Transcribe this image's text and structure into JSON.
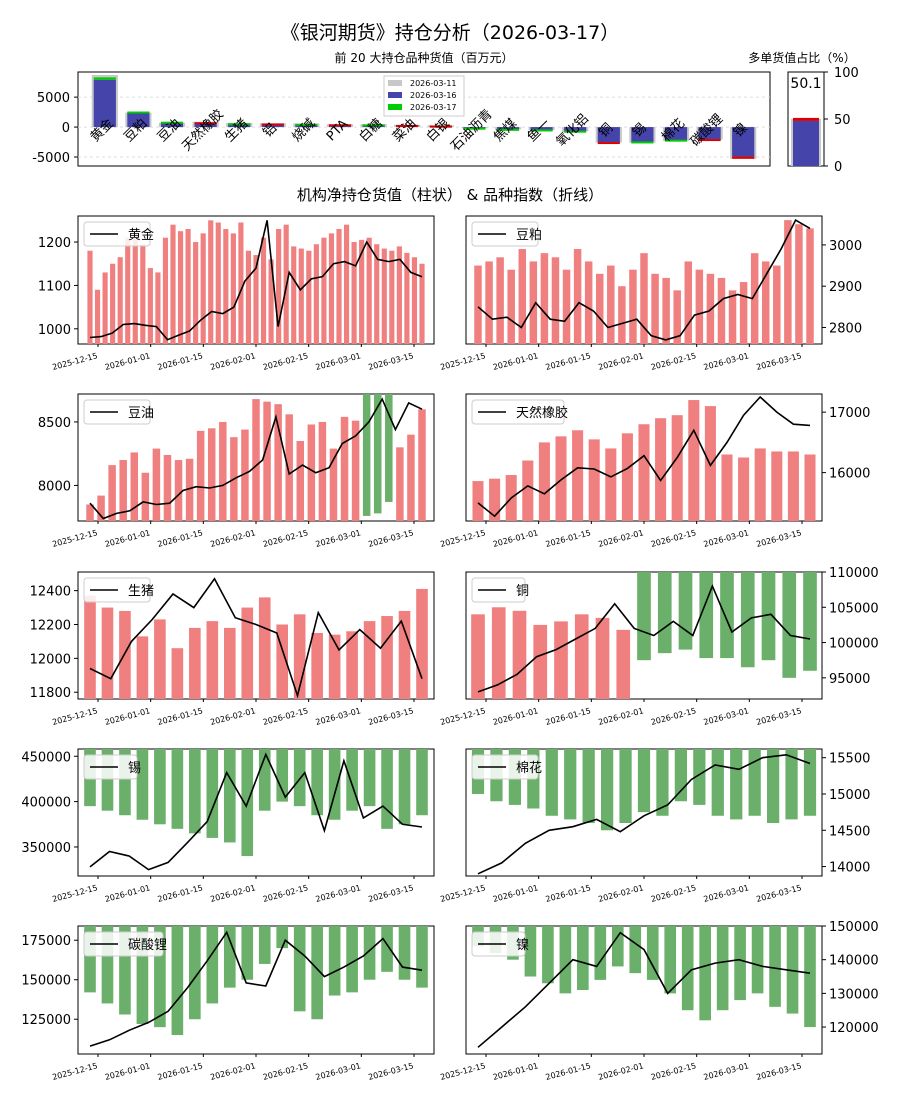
{
  "title": "《银河期货》持仓分析（2026-03-17）",
  "top_chart_title": "前 20 大持仓品种货值（百万元）",
  "ratio_chart_title": "多单货值占比（%）",
  "middle_title": "机构净持仓货值（柱状） & 品种指数（折线）",
  "colors": {
    "d1": "#c8c8c8",
    "d2": "#4444aa",
    "d3": "#00cc00",
    "neg": "#dd0000",
    "pos_bar": "#f08080",
    "neg_bar": "#6aaf6a",
    "line": "#000000"
  },
  "chart_data": [
    {
      "id": "top20",
      "type": "bar",
      "title": "前 20 大持仓品种货值（百万元）",
      "categories": [
        "黄金",
        "豆粕",
        "豆油",
        "天然橡胶",
        "生猪",
        "铝",
        "烧碱",
        "PTA",
        "白糖",
        "菜油",
        "白银",
        "石油沥青",
        "焦煤",
        "鱼一",
        "氧化铝",
        "铜",
        "锡",
        "棉花",
        "碳酸锂",
        "镍"
      ],
      "series": [
        {
          "name": "2026-03-11",
          "values": [
            8700,
            2400,
            700,
            900,
            700,
            650,
            600,
            500,
            500,
            400,
            300,
            -200,
            -400,
            -500,
            -700,
            -2600,
            -2600,
            -2300,
            -2100,
            -5300
          ]
        },
        {
          "name": "2026-03-16",
          "values": [
            7900,
            2500,
            800,
            800,
            600,
            600,
            500,
            450,
            400,
            350,
            250,
            -150,
            -350,
            -450,
            -650,
            -2500,
            -2500,
            -2200,
            -2000,
            -4900
          ]
        },
        {
          "name": "2026-03-17",
          "values": [
            8300,
            2600,
            900,
            700,
            650,
            550,
            550,
            400,
            450,
            300,
            -100,
            -100,
            -300,
            -400,
            -600,
            -2700,
            -2400,
            -2100,
            -2300,
            -5300
          ]
        }
      ],
      "yticks": [
        -5000,
        0,
        5000
      ],
      "ylim": [
        -6500,
        9200
      ],
      "legend": "top-center"
    },
    {
      "id": "ratio",
      "type": "bar",
      "title": "多单货值占比（%）",
      "categories": [
        ""
      ],
      "values": [
        50.1
      ],
      "label": "50.1",
      "ylim": [
        0,
        100
      ],
      "yticks": [
        0,
        50,
        100
      ]
    },
    {
      "id": "p-gold",
      "type": "bar+line",
      "name": "黄金",
      "axis": "left",
      "ylim": [
        965,
        1260
      ],
      "yticks": [
        1000,
        1100,
        1200
      ],
      "bars": [
        1180,
        1090,
        1130,
        1150,
        1165,
        1210,
        1220,
        1195,
        1140,
        1130,
        1210,
        1240,
        1225,
        1230,
        1200,
        1220,
        1250,
        1245,
        1230,
        1220,
        1245,
        1180,
        1170,
        1210,
        1160,
        1230,
        1240,
        1190,
        1185,
        1180,
        1195,
        1210,
        1220,
        1230,
        1240,
        1200,
        1205,
        1210,
        1195,
        1185,
        1180,
        1190,
        1175,
        1165,
        1150
      ],
      "line": [
        980,
        982,
        990,
        1010,
        1012,
        1008,
        1005,
        975,
        985,
        995,
        1020,
        1040,
        1035,
        1050,
        1110,
        1140,
        1250,
        1005,
        1130,
        1090,
        1115,
        1120,
        1150,
        1155,
        1145,
        1200,
        1160,
        1155,
        1160,
        1130,
        1120
      ]
    },
    {
      "id": "p-meal",
      "type": "bar+line",
      "name": "豆粕",
      "axis": "right",
      "ylim": [
        2760,
        3070
      ],
      "yticks": [
        2800,
        2900,
        3000
      ],
      "bars": [
        2950,
        2960,
        2970,
        2940,
        2990,
        2960,
        2980,
        2970,
        2940,
        2990,
        2960,
        2930,
        2950,
        2900,
        2940,
        2980,
        2930,
        2920,
        2890,
        2960,
        2940,
        2930,
        2920,
        2890,
        2910,
        2980,
        2960,
        2950,
        3060,
        3050,
        3040
      ],
      "line": [
        2850,
        2820,
        2825,
        2800,
        2860,
        2820,
        2815,
        2860,
        2840,
        2800,
        2810,
        2820,
        2780,
        2770,
        2780,
        2830,
        2840,
        2870,
        2880,
        2870,
        2930,
        2990,
        3060,
        3040
      ]
    },
    {
      "id": "p-soyoil",
      "type": "bar+line",
      "name": "豆油",
      "axis": "left",
      "ylim": [
        7720,
        8720
      ],
      "yticks": [
        8000,
        8500
      ],
      "bars": [
        7850,
        7920,
        8160,
        8200,
        8260,
        8100,
        8290,
        8240,
        8200,
        8210,
        8430,
        8450,
        8500,
        8380,
        8440,
        8680,
        8660,
        8640,
        8560,
        8350,
        8480,
        8500,
        8290,
        8540,
        8510,
        7760,
        7780,
        7870,
        8300,
        8400,
        8600
      ],
      "line": [
        7860,
        7740,
        7780,
        7800,
        7870,
        7850,
        7860,
        7960,
        7990,
        7980,
        8000,
        8060,
        8110,
        8200,
        8540,
        8090,
        8160,
        8100,
        8140,
        8330,
        8390,
        8500,
        8680,
        8440,
        8650,
        8600
      ]
    },
    {
      "id": "p-rubber",
      "type": "bar+line",
      "name": "天然橡胶",
      "axis": "right",
      "ylim": [
        15200,
        17300
      ],
      "yticks": [
        16000,
        17000
      ],
      "bars": [
        15860,
        15900,
        15960,
        16200,
        16500,
        16600,
        16700,
        16550,
        16400,
        16650,
        16800,
        16900,
        16950,
        17200,
        17100,
        16300,
        16250,
        16400,
        16350,
        16350,
        16300
      ],
      "line": [
        15500,
        15280,
        15580,
        15780,
        15650,
        15880,
        16080,
        16060,
        15930,
        16070,
        16280,
        15870,
        16250,
        16700,
        16120,
        16500,
        16950,
        17250,
        17000,
        16800,
        16780
      ]
    },
    {
      "id": "p-hog",
      "type": "bar+line",
      "name": "生猪",
      "axis": "left",
      "ylim": [
        11760,
        12510
      ],
      "yticks": [
        11800,
        12000,
        12200,
        12400
      ],
      "bars": [
        12370,
        12300,
        12280,
        12130,
        12230,
        12060,
        12180,
        12220,
        12180,
        12300,
        12360,
        12200,
        12260,
        12150,
        12140,
        12160,
        12220,
        12250,
        12280,
        12410
      ],
      "line": [
        11940,
        11880,
        12100,
        12230,
        12380,
        12300,
        12470,
        12240,
        12200,
        12150,
        11780,
        12270,
        12050,
        12170,
        12060,
        12220,
        11880
      ]
    },
    {
      "id": "p-copper",
      "type": "bar+line",
      "name": "铜",
      "axis": "right",
      "ylim": [
        92000,
        110000
      ],
      "yticks": [
        95000,
        100000,
        105000,
        110000
      ],
      "bars": [
        104000,
        105000,
        104500,
        102500,
        103000,
        104000,
        103500,
        101800,
        97500,
        98500,
        99000,
        97800,
        97800,
        96500,
        97500,
        95000,
        96000
      ],
      "line": [
        93000,
        94000,
        95500,
        98000,
        99000,
        100500,
        102000,
        105500,
        102000,
        101000,
        103000,
        101000,
        108000,
        101500,
        103500,
        104000,
        101000,
        100500
      ]
    },
    {
      "id": "p-tin",
      "type": "bar+line",
      "name": "锡",
      "axis": "left",
      "ylim": [
        318000,
        458000
      ],
      "yticks": [
        350000,
        400000,
        450000
      ],
      "bars": [
        395000,
        390000,
        385000,
        380000,
        375000,
        370000,
        365000,
        360000,
        355000,
        340000,
        390000,
        400000,
        395000,
        385000,
        380000,
        390000,
        395000,
        370000,
        375000,
        385000
      ],
      "line": [
        328000,
        345000,
        340000,
        325000,
        333000,
        355000,
        378000,
        432000,
        395000,
        452000,
        405000,
        432000,
        368000,
        445000,
        382000,
        395000,
        375000,
        372000
      ]
    },
    {
      "id": "p-cotton",
      "type": "bar+line",
      "name": "棉花",
      "axis": "right",
      "ylim": [
        13870,
        15620
      ],
      "yticks": [
        14000,
        14500,
        15000,
        15500
      ],
      "bars": [
        15000,
        14900,
        14850,
        14800,
        14700,
        14650,
        14600,
        14500,
        14600,
        14750,
        14700,
        14900,
        14850,
        14700,
        14650,
        14700,
        14600,
        14650,
        14700
      ],
      "line": [
        13900,
        14050,
        14320,
        14500,
        14550,
        14650,
        14480,
        14700,
        14850,
        15200,
        15400,
        15340,
        15500,
        15540,
        15420
      ]
    },
    {
      "id": "p-lithium",
      "type": "bar+line",
      "name": "碳酸锂",
      "axis": "left",
      "ylim": [
        103000,
        184000
      ],
      "yticks": [
        125000,
        150000,
        175000
      ],
      "bars": [
        142000,
        135000,
        128000,
        122000,
        120000,
        115000,
        125000,
        135000,
        145000,
        150000,
        160000,
        170000,
        130000,
        125000,
        140000,
        142000,
        150000,
        155000,
        150000,
        145000
      ],
      "line": [
        108000,
        112000,
        118000,
        123000,
        130000,
        145000,
        162000,
        180000,
        148000,
        146000,
        175000,
        165000,
        152000,
        158000,
        165000,
        176000,
        158000,
        156000
      ]
    },
    {
      "id": "p-nickel",
      "type": "bar+line",
      "name": "镍",
      "axis": "right",
      "ylim": [
        112000,
        150000
      ],
      "yticks": [
        120000,
        130000,
        140000,
        150000
      ],
      "bars": [
        144000,
        142000,
        140000,
        135000,
        133000,
        130000,
        131000,
        134000,
        138000,
        136000,
        134000,
        130000,
        125000,
        122000,
        125000,
        128000,
        130000,
        126000,
        124000,
        120000
      ],
      "line": [
        114000,
        120000,
        126000,
        133000,
        140000,
        138000,
        148000,
        143000,
        130000,
        137000,
        139000,
        140000,
        138000,
        137000,
        136000
      ]
    }
  ],
  "date_ticks": [
    "2025-12-15",
    "2026-01-01",
    "2026-01-15",
    "2026-02-01",
    "2026-02-15",
    "2026-03-01",
    "2026-03-15"
  ]
}
